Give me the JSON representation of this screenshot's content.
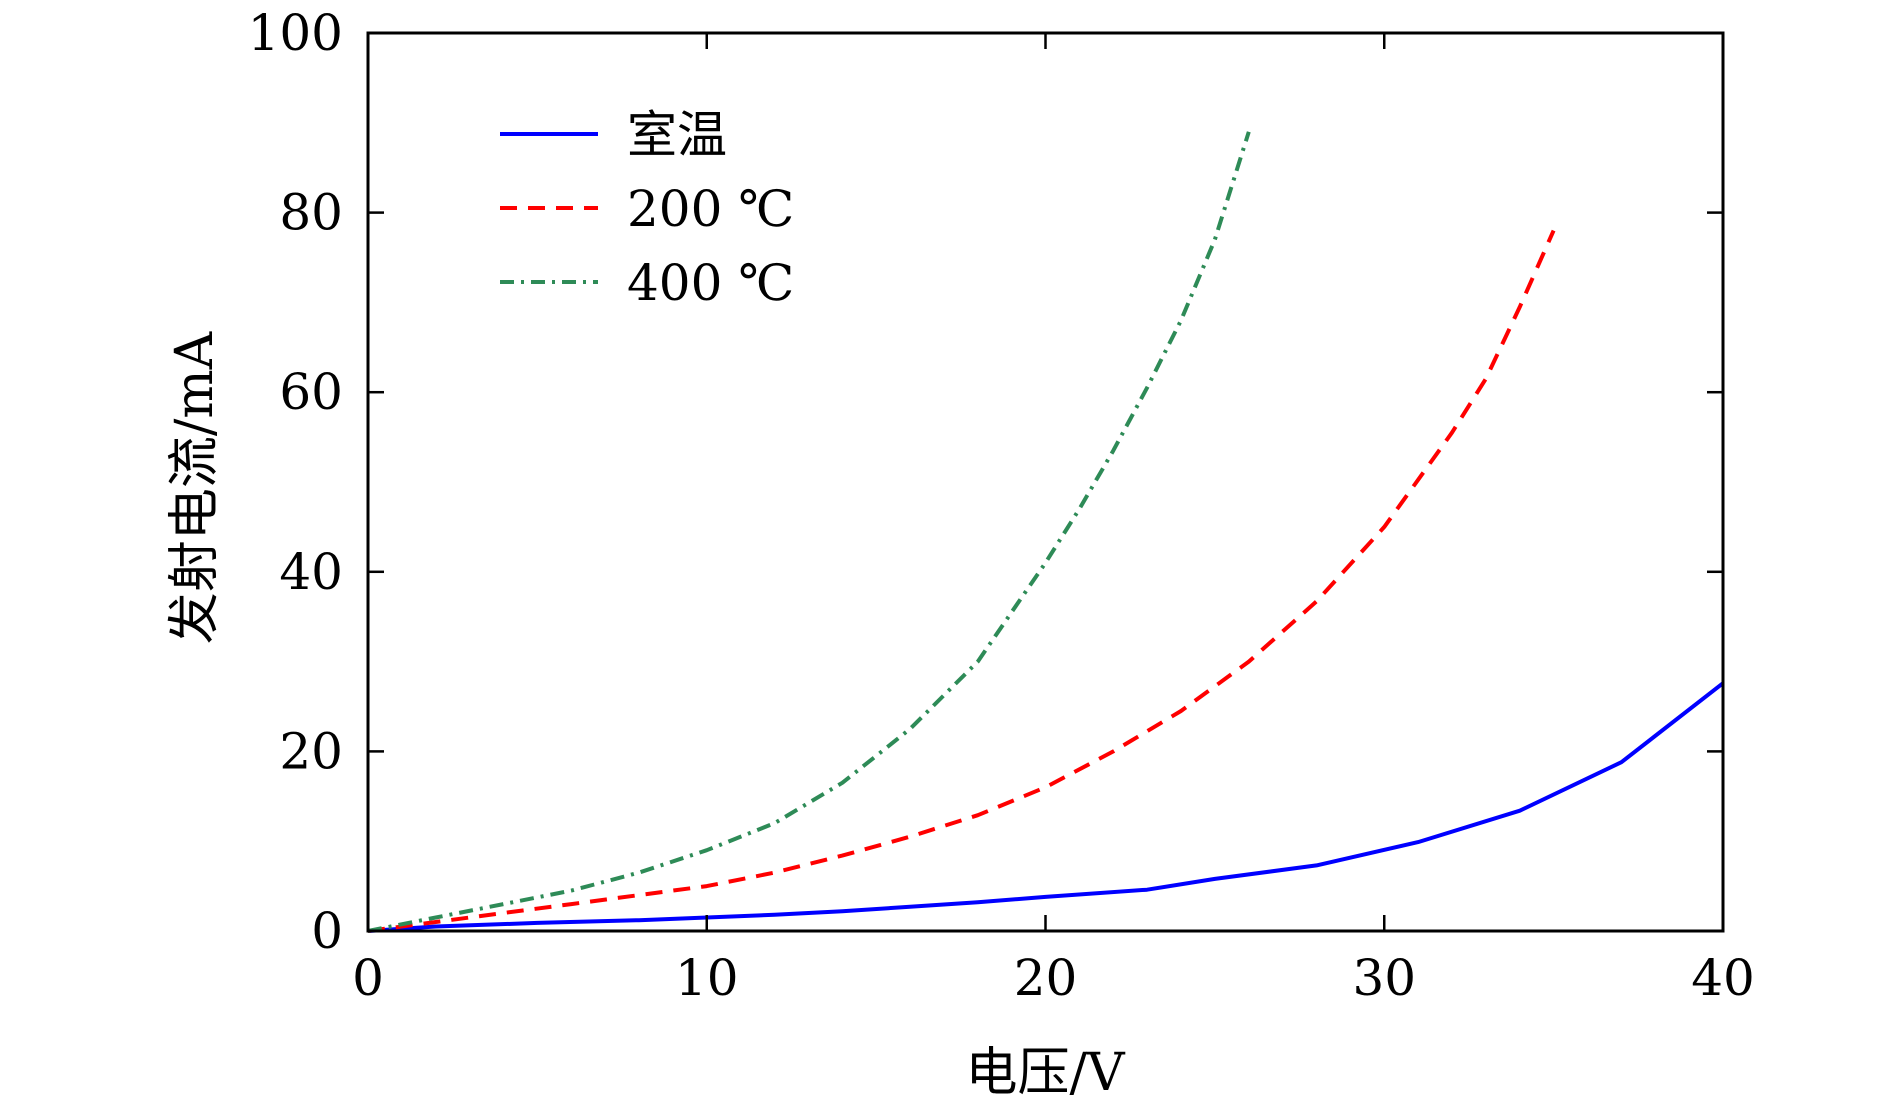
{
  "chart_data": {
    "type": "line",
    "title": "",
    "xlabel": "电压/V",
    "ylabel": "发射电流/mA",
    "xlim": [
      0,
      40
    ],
    "ylim": [
      0,
      100
    ],
    "xticks": [
      0,
      10,
      20,
      30,
      40
    ],
    "yticks": [
      0,
      20,
      40,
      60,
      80,
      100
    ],
    "grid": false,
    "legend_position": "top-left",
    "series": [
      {
        "name": "室温",
        "color": "#0000ff",
        "style": "solid",
        "x": [
          0,
          2,
          5,
          8,
          10,
          12,
          14,
          16,
          18,
          20,
          23,
          25,
          28,
          31,
          34,
          37,
          40
        ],
        "y": [
          0,
          0.5,
          0.9,
          1.2,
          1.5,
          1.8,
          2.2,
          2.7,
          3.2,
          3.8,
          4.6,
          5.8,
          7.3,
          9.9,
          13.4,
          18.8,
          27.6
        ]
      },
      {
        "name": "200 ℃",
        "color": "#ff0000",
        "style": "dashed",
        "x": [
          0,
          2,
          4,
          6,
          8,
          10,
          12,
          14,
          16,
          18,
          20,
          22,
          24,
          26,
          28,
          30,
          32,
          33,
          34,
          35
        ],
        "y": [
          0,
          1,
          2,
          3,
          4,
          5,
          6.5,
          8.4,
          10.5,
          12.9,
          16,
          20,
          24.5,
          30,
          36.7,
          45,
          55.5,
          61.5,
          69.5,
          78
        ]
      },
      {
        "name": "400 ℃",
        "color": "#2e8b57",
        "style": "dashdot",
        "x": [
          0,
          2,
          4,
          6,
          8,
          10,
          12,
          14,
          16,
          18,
          19,
          20,
          21,
          22,
          23,
          24,
          25,
          26
        ],
        "y": [
          0,
          1.5,
          3,
          4.5,
          6.5,
          9,
          12,
          16.5,
          22.5,
          30,
          35.5,
          41,
          47,
          53.5,
          60.5,
          68,
          77,
          89
        ]
      }
    ]
  }
}
